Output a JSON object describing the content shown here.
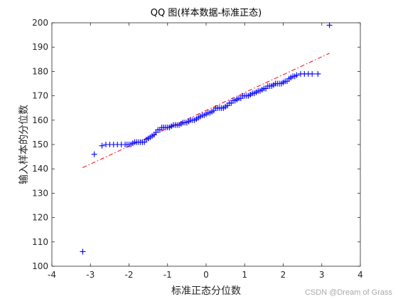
{
  "chart_data": {
    "type": "scatter",
    "title": "QQ 图(样本数据-标准正态)",
    "xlabel": "标准正态分位数",
    "ylabel": "输入样本的分位数",
    "xlim": [
      -4,
      4
    ],
    "ylim": [
      100,
      200
    ],
    "xticks": [
      -4,
      -3,
      -2,
      -1,
      0,
      1,
      2,
      3,
      4
    ],
    "yticks": [
      100,
      110,
      120,
      130,
      140,
      150,
      160,
      170,
      180,
      190,
      200
    ],
    "grid": false,
    "marker": "+",
    "colors": {
      "points": "#0000ff",
      "reference": "#ff0000",
      "axes": "#262626"
    },
    "reference_line": {
      "style": "dash-dot",
      "x": [
        -3.2,
        3.2
      ],
      "y": [
        140.5,
        187.5
      ]
    },
    "points": [
      [
        -3.2,
        106
      ],
      [
        -2.9,
        146
      ],
      [
        -2.7,
        149.5
      ],
      [
        -2.6,
        150
      ],
      [
        -2.5,
        150
      ],
      [
        -2.4,
        150
      ],
      [
        -2.3,
        150
      ],
      [
        -2.2,
        150
      ],
      [
        -2.1,
        150
      ],
      [
        -2.05,
        150
      ],
      [
        -2.0,
        150
      ],
      [
        -1.95,
        150
      ],
      [
        -1.9,
        150.5
      ],
      [
        -1.85,
        151
      ],
      [
        -1.8,
        151
      ],
      [
        -1.75,
        151
      ],
      [
        -1.7,
        151
      ],
      [
        -1.65,
        151
      ],
      [
        -1.6,
        151
      ],
      [
        -1.55,
        152
      ],
      [
        -1.5,
        152.5
      ],
      [
        -1.45,
        153
      ],
      [
        -1.4,
        153.5
      ],
      [
        -1.35,
        154
      ],
      [
        -1.3,
        155
      ],
      [
        -1.25,
        156
      ],
      [
        -1.2,
        156
      ],
      [
        -1.15,
        157
      ],
      [
        -1.1,
        157
      ],
      [
        -1.05,
        157
      ],
      [
        -1.0,
        157
      ],
      [
        -0.95,
        157
      ],
      [
        -0.9,
        157.5
      ],
      [
        -0.85,
        158
      ],
      [
        -0.8,
        158
      ],
      [
        -0.75,
        158
      ],
      [
        -0.7,
        158
      ],
      [
        -0.65,
        158.5
      ],
      [
        -0.6,
        159
      ],
      [
        -0.55,
        159
      ],
      [
        -0.5,
        159
      ],
      [
        -0.45,
        159.5
      ],
      [
        -0.4,
        160
      ],
      [
        -0.35,
        160
      ],
      [
        -0.3,
        160
      ],
      [
        -0.25,
        160.5
      ],
      [
        -0.2,
        161
      ],
      [
        -0.15,
        161.5
      ],
      [
        -0.1,
        162
      ],
      [
        -0.05,
        162
      ],
      [
        0.0,
        162.5
      ],
      [
        0.05,
        163
      ],
      [
        0.1,
        163
      ],
      [
        0.15,
        163.5
      ],
      [
        0.2,
        164
      ],
      [
        0.25,
        165
      ],
      [
        0.3,
        165
      ],
      [
        0.35,
        165
      ],
      [
        0.4,
        165
      ],
      [
        0.45,
        165
      ],
      [
        0.5,
        165.5
      ],
      [
        0.55,
        166
      ],
      [
        0.6,
        167
      ],
      [
        0.65,
        167
      ],
      [
        0.7,
        168
      ],
      [
        0.75,
        168
      ],
      [
        0.8,
        168.5
      ],
      [
        0.85,
        169
      ],
      [
        0.9,
        169
      ],
      [
        0.95,
        170
      ],
      [
        1.0,
        170
      ],
      [
        1.05,
        170
      ],
      [
        1.1,
        170
      ],
      [
        1.15,
        170.5
      ],
      [
        1.2,
        171
      ],
      [
        1.25,
        171
      ],
      [
        1.3,
        171.5
      ],
      [
        1.35,
        172
      ],
      [
        1.4,
        172
      ],
      [
        1.45,
        172.5
      ],
      [
        1.5,
        173
      ],
      [
        1.55,
        173
      ],
      [
        1.6,
        174
      ],
      [
        1.65,
        174
      ],
      [
        1.7,
        174
      ],
      [
        1.75,
        174.5
      ],
      [
        1.8,
        175
      ],
      [
        1.85,
        175
      ],
      [
        1.9,
        175
      ],
      [
        1.95,
        175
      ],
      [
        2.0,
        175.5
      ],
      [
        2.05,
        176
      ],
      [
        2.1,
        176
      ],
      [
        2.15,
        177
      ],
      [
        2.2,
        177.5
      ],
      [
        2.25,
        178
      ],
      [
        2.3,
        178
      ],
      [
        2.35,
        178.5
      ],
      [
        2.45,
        179
      ],
      [
        2.55,
        179
      ],
      [
        2.65,
        179
      ],
      [
        2.75,
        179
      ],
      [
        2.9,
        179
      ],
      [
        3.2,
        199
      ]
    ]
  },
  "watermark": "CSDN @Dream of Grass"
}
